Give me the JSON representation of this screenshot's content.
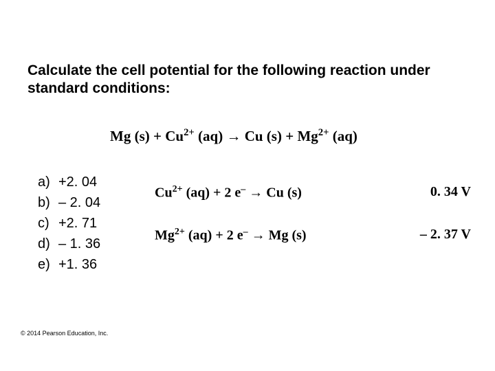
{
  "question": "Calculate the cell potential for the following reaction under standard conditions:",
  "equation": {
    "reactant1": "Mg (s)",
    "plus1": " + ",
    "reactant2species": "Cu",
    "reactant2charge": "2+",
    "reactant2phase": " (aq)",
    "arrow": " → ",
    "product1": "Cu (s)",
    "plus2": " + ",
    "product2species": "Mg",
    "product2charge": "2+",
    "product2phase": " (aq)"
  },
  "options": [
    {
      "letter": "a)",
      "value": "+2. 04"
    },
    {
      "letter": "b)",
      "value": "– 2. 04"
    },
    {
      "letter": "c)",
      "value": "+2. 71"
    },
    {
      "letter": "d)",
      "value": "– 1. 36"
    },
    {
      "letter": "e)",
      "value": "+1. 36"
    }
  ],
  "half1": {
    "species": "Cu",
    "charge": "2+",
    "phase": " (aq)",
    "plus": " + 2 e",
    "eminus": "–",
    "arrow": " → Cu (s)",
    "potential": "0. 34 V"
  },
  "half2": {
    "species": "Mg",
    "charge": "2+",
    "phase": " (aq)",
    "plus": " + 2 e",
    "eminus": "–",
    "arrow": " → Mg (s)",
    "potential": "– 2. 37 V"
  },
  "copyright": "© 2014 Pearson Education, Inc."
}
